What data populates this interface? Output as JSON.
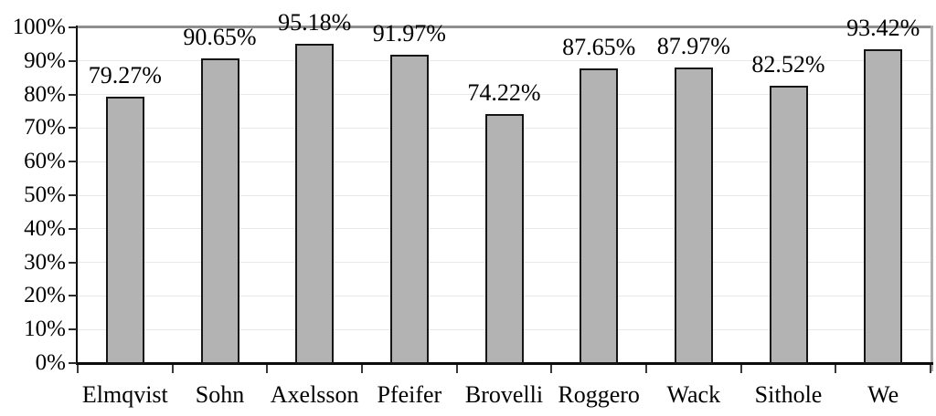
{
  "chart_data": {
    "type": "bar",
    "categories": [
      "Elmqvist",
      "Sohn",
      "Axelsson",
      "Pfeifer",
      "Brovelli",
      "Roggero",
      "Wack",
      "Sithole",
      "We"
    ],
    "values": [
      79.27,
      90.65,
      95.18,
      91.97,
      74.22,
      87.65,
      87.97,
      82.52,
      93.42
    ],
    "data_labels": [
      "79.27%",
      "90.65%",
      "95.18%",
      "91.97%",
      "74.22%",
      "87.65%",
      "87.97%",
      "82.52%",
      "93.42%"
    ],
    "title": "",
    "xlabel": "",
    "ylabel": "",
    "ylim": [
      0,
      100
    ],
    "ytick_values": [
      0,
      10,
      20,
      30,
      40,
      50,
      60,
      70,
      80,
      90,
      100
    ],
    "ytick_labels": [
      "0%",
      "10%",
      "20%",
      "30%",
      "40%",
      "50%",
      "60%",
      "70%",
      "80%",
      "90%",
      "100%"
    ],
    "grid": "horizontal",
    "legend_position": "none",
    "colors": {
      "bar_fill": "#b3b3b3",
      "bar_border": "#151515",
      "gridline": "#e8e8e8",
      "plot_border_top": "#8f8f8f",
      "plot_border_right": "#b0b0b0",
      "axis_line": "#0c0c0c",
      "label_text": "#000000",
      "background": "#ffffff"
    }
  }
}
